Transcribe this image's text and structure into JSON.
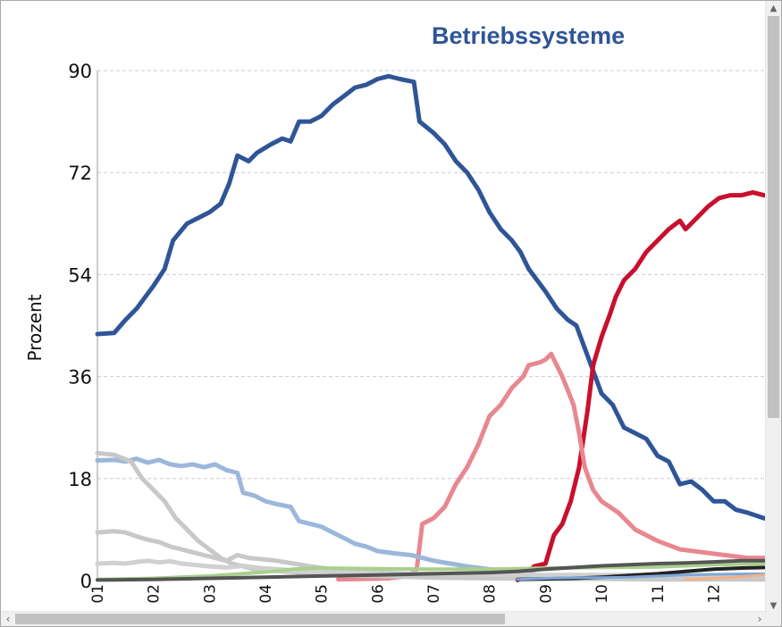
{
  "chart_data": {
    "type": "line",
    "title": "Betriebssysteme",
    "ylabel": "Prozent",
    "xlabel": "",
    "ylim": [
      0,
      90
    ],
    "xlim": [
      2001.0,
      2012.95
    ],
    "yticks": [
      0,
      18,
      36,
      54,
      72,
      90
    ],
    "xticks": [
      "01",
      "02",
      "03",
      "04",
      "05",
      "06",
      "07",
      "08",
      "09",
      "10",
      "11",
      "12"
    ],
    "grid": "horizontal dashed",
    "series": [
      {
        "color": "#2f5597",
        "width": 5,
        "points": [
          [
            2001.0,
            43.5
          ],
          [
            2001.3,
            43.7
          ],
          [
            2001.5,
            46
          ],
          [
            2001.7,
            48
          ],
          [
            2001.85,
            50
          ],
          [
            2002.0,
            52
          ],
          [
            2002.2,
            55
          ],
          [
            2002.35,
            60
          ],
          [
            2002.6,
            63
          ],
          [
            2002.8,
            64
          ],
          [
            2003.0,
            65
          ],
          [
            2003.2,
            66.5
          ],
          [
            2003.35,
            70
          ],
          [
            2003.5,
            75
          ],
          [
            2003.7,
            74
          ],
          [
            2003.85,
            75.5
          ],
          [
            2004.1,
            77
          ],
          [
            2004.3,
            78
          ],
          [
            2004.45,
            77.5
          ],
          [
            2004.6,
            81
          ],
          [
            2004.8,
            81
          ],
          [
            2005.0,
            82
          ],
          [
            2005.2,
            84
          ],
          [
            2005.4,
            85.5
          ],
          [
            2005.6,
            87
          ],
          [
            2005.8,
            87.5
          ],
          [
            2006.0,
            88.5
          ],
          [
            2006.2,
            89
          ],
          [
            2006.4,
            88.5
          ],
          [
            2006.65,
            88
          ],
          [
            2006.75,
            81
          ],
          [
            2007.0,
            79
          ],
          [
            2007.2,
            77
          ],
          [
            2007.4,
            74
          ],
          [
            2007.6,
            72
          ],
          [
            2007.8,
            69
          ],
          [
            2008.0,
            65
          ],
          [
            2008.2,
            62
          ],
          [
            2008.4,
            60
          ],
          [
            2008.55,
            58
          ],
          [
            2008.7,
            55
          ],
          [
            2008.85,
            53
          ],
          [
            2009.0,
            51
          ],
          [
            2009.2,
            48
          ],
          [
            2009.4,
            46
          ],
          [
            2009.55,
            45
          ],
          [
            2009.7,
            41
          ],
          [
            2009.85,
            37
          ],
          [
            2010.0,
            33
          ],
          [
            2010.2,
            31
          ],
          [
            2010.4,
            27
          ],
          [
            2010.6,
            26
          ],
          [
            2010.8,
            25
          ],
          [
            2011.0,
            22
          ],
          [
            2011.2,
            21
          ],
          [
            2011.4,
            17
          ],
          [
            2011.6,
            17.5
          ],
          [
            2011.8,
            16
          ],
          [
            2012.0,
            14
          ],
          [
            2012.2,
            14
          ],
          [
            2012.4,
            12.5
          ],
          [
            2012.6,
            12
          ],
          [
            2012.9,
            11
          ]
        ]
      },
      {
        "color": "#c8102e",
        "width": 5,
        "points": [
          [
            2008.5,
            0.1
          ],
          [
            2008.8,
            2.5
          ],
          [
            2009.0,
            3
          ],
          [
            2009.15,
            8
          ],
          [
            2009.3,
            10
          ],
          [
            2009.45,
            14
          ],
          [
            2009.6,
            20
          ],
          [
            2009.75,
            30
          ],
          [
            2009.85,
            38
          ],
          [
            2010.0,
            43
          ],
          [
            2010.15,
            47
          ],
          [
            2010.25,
            50
          ],
          [
            2010.4,
            53
          ],
          [
            2010.6,
            55
          ],
          [
            2010.8,
            58
          ],
          [
            2011.0,
            60
          ],
          [
            2011.2,
            62
          ],
          [
            2011.4,
            63.5
          ],
          [
            2011.5,
            62
          ],
          [
            2011.7,
            64
          ],
          [
            2011.9,
            66
          ],
          [
            2012.1,
            67.5
          ],
          [
            2012.3,
            68
          ],
          [
            2012.5,
            68
          ],
          [
            2012.7,
            68.5
          ],
          [
            2012.9,
            68
          ]
        ]
      },
      {
        "color": "#e8878f",
        "width": 5,
        "points": [
          [
            2005.3,
            0.2
          ],
          [
            2005.8,
            0.3
          ],
          [
            2006.2,
            0.4
          ],
          [
            2006.55,
            0.8
          ],
          [
            2006.7,
            2
          ],
          [
            2006.8,
            10
          ],
          [
            2007.0,
            11
          ],
          [
            2007.2,
            13
          ],
          [
            2007.4,
            17
          ],
          [
            2007.6,
            20
          ],
          [
            2007.8,
            24
          ],
          [
            2008.0,
            29
          ],
          [
            2008.2,
            31
          ],
          [
            2008.4,
            34
          ],
          [
            2008.6,
            36
          ],
          [
            2008.7,
            38
          ],
          [
            2008.9,
            38.5
          ],
          [
            2009.0,
            39
          ],
          [
            2009.1,
            40
          ],
          [
            2009.3,
            36
          ],
          [
            2009.5,
            31
          ],
          [
            2009.6,
            26
          ],
          [
            2009.7,
            20
          ],
          [
            2009.85,
            16
          ],
          [
            2010.0,
            14
          ],
          [
            2010.3,
            12
          ],
          [
            2010.6,
            9
          ],
          [
            2011.0,
            7
          ],
          [
            2011.4,
            5.5
          ],
          [
            2011.8,
            5
          ],
          [
            2012.2,
            4.5
          ],
          [
            2012.6,
            4
          ],
          [
            2012.9,
            4
          ]
        ]
      },
      {
        "color": "#9bb7db",
        "width": 5,
        "points": [
          [
            2001.0,
            21.2
          ],
          [
            2001.3,
            21.3
          ],
          [
            2001.5,
            21
          ],
          [
            2001.7,
            21.5
          ],
          [
            2001.9,
            20.8
          ],
          [
            2002.1,
            21.3
          ],
          [
            2002.3,
            20.5
          ],
          [
            2002.5,
            20.2
          ],
          [
            2002.7,
            20.5
          ],
          [
            2002.9,
            20
          ],
          [
            2003.1,
            20.5
          ],
          [
            2003.3,
            19.5
          ],
          [
            2003.5,
            19
          ],
          [
            2003.6,
            15.5
          ],
          [
            2003.8,
            15
          ],
          [
            2004.0,
            14
          ],
          [
            2004.2,
            13.5
          ],
          [
            2004.45,
            13
          ],
          [
            2004.6,
            10.5
          ],
          [
            2004.8,
            10
          ],
          [
            2005.0,
            9.5
          ],
          [
            2005.2,
            8.5
          ],
          [
            2005.4,
            7.5
          ],
          [
            2005.6,
            6.5
          ],
          [
            2005.8,
            6
          ],
          [
            2006.0,
            5.2
          ],
          [
            2006.3,
            4.8
          ],
          [
            2006.6,
            4.5
          ],
          [
            2006.8,
            4
          ],
          [
            2007.0,
            3.5
          ],
          [
            2007.3,
            3
          ],
          [
            2007.6,
            2.5
          ],
          [
            2008.0,
            2
          ],
          [
            2008.5,
            1.5
          ],
          [
            2009.0,
            0.8
          ],
          [
            2009.5,
            0.3
          ]
        ]
      },
      {
        "color": "#c8c8c8",
        "width": 5,
        "points": [
          [
            2001.0,
            22.5
          ],
          [
            2001.3,
            22.2
          ],
          [
            2001.6,
            21
          ],
          [
            2001.8,
            18
          ],
          [
            2002.0,
            16
          ],
          [
            2002.2,
            14
          ],
          [
            2002.4,
            11
          ],
          [
            2002.6,
            9
          ],
          [
            2002.8,
            7
          ],
          [
            2003.0,
            5.5
          ],
          [
            2003.2,
            4
          ],
          [
            2003.4,
            3
          ],
          [
            2003.6,
            2.5
          ],
          [
            2003.8,
            2
          ],
          [
            2004.0,
            1.8
          ],
          [
            2004.5,
            1.5
          ],
          [
            2005.0,
            1
          ],
          [
            2006.0,
            0.8
          ],
          [
            2007.0,
            0.5
          ],
          [
            2008.0,
            0.4
          ],
          [
            2009.0,
            0.3
          ],
          [
            2010.0,
            0.3
          ],
          [
            2011.0,
            0.2
          ],
          [
            2012.0,
            0.2
          ],
          [
            2012.9,
            0.2
          ]
        ]
      },
      {
        "color": "#c8c8c8",
        "width": 5,
        "points": [
          [
            2001.0,
            8.5
          ],
          [
            2001.3,
            8.7
          ],
          [
            2001.5,
            8.5
          ],
          [
            2001.7,
            7.8
          ],
          [
            2001.9,
            7.2
          ],
          [
            2002.1,
            6.8
          ],
          [
            2002.3,
            6
          ],
          [
            2002.5,
            5.5
          ],
          [
            2002.7,
            5
          ],
          [
            2002.9,
            4.5
          ],
          [
            2003.1,
            4
          ],
          [
            2003.3,
            3.5
          ],
          [
            2003.5,
            4.5
          ],
          [
            2003.7,
            4
          ],
          [
            2003.9,
            3.8
          ],
          [
            2004.2,
            3.5
          ],
          [
            2004.5,
            3
          ],
          [
            2004.8,
            2.5
          ],
          [
            2005.2,
            2
          ],
          [
            2005.6,
            1.8
          ],
          [
            2006.0,
            1.5
          ],
          [
            2007.0,
            1
          ],
          [
            2008.0,
            0.8
          ],
          [
            2009.0,
            0.6
          ],
          [
            2010.0,
            0.5
          ],
          [
            2011.0,
            0.4
          ],
          [
            2012.0,
            0.3
          ],
          [
            2012.9,
            0.3
          ]
        ]
      },
      {
        "color": "#d0d0d0",
        "width": 5,
        "points": [
          [
            2001.0,
            3
          ],
          [
            2001.3,
            3.1
          ],
          [
            2001.5,
            3
          ],
          [
            2001.7,
            3.3
          ],
          [
            2001.9,
            3.5
          ],
          [
            2002.1,
            3.2
          ],
          [
            2002.3,
            3.4
          ],
          [
            2002.5,
            3
          ],
          [
            2002.7,
            2.8
          ],
          [
            2003.0,
            2.5
          ],
          [
            2003.3,
            2.3
          ],
          [
            2003.6,
            2.6
          ],
          [
            2003.9,
            2.2
          ],
          [
            2004.2,
            2
          ],
          [
            2004.5,
            1.8
          ],
          [
            2005.0,
            1.5
          ],
          [
            2005.5,
            1.3
          ],
          [
            2006.0,
            1.2
          ],
          [
            2007.0,
            1.2
          ],
          [
            2008.0,
            1.1
          ],
          [
            2009.0,
            1
          ],
          [
            2010.0,
            1
          ],
          [
            2011.0,
            1
          ],
          [
            2012.0,
            0.9
          ],
          [
            2012.9,
            0.9
          ]
        ]
      },
      {
        "color": "#a8d08d",
        "width": 4,
        "points": [
          [
            2001.0,
            0.2
          ],
          [
            2002.0,
            0.4
          ],
          [
            2003.0,
            0.8
          ],
          [
            2004.0,
            1.5
          ],
          [
            2004.5,
            2
          ],
          [
            2005.0,
            2.2
          ],
          [
            2006.0,
            2.1
          ],
          [
            2007.0,
            2
          ],
          [
            2008.0,
            2
          ],
          [
            2008.5,
            2.1
          ],
          [
            2009.0,
            2.2
          ],
          [
            2010.0,
            2.3
          ],
          [
            2011.0,
            2.4
          ],
          [
            2012.0,
            2.8
          ],
          [
            2012.9,
            3
          ]
        ]
      },
      {
        "color": "#555555",
        "width": 4,
        "points": [
          [
            2001.0,
            0.1
          ],
          [
            2002.0,
            0.2
          ],
          [
            2003.0,
            0.4
          ],
          [
            2004.0,
            0.6
          ],
          [
            2005.0,
            0.8
          ],
          [
            2006.0,
            1
          ],
          [
            2007.0,
            1.2
          ],
          [
            2008.0,
            1.4
          ],
          [
            2008.5,
            1.6
          ],
          [
            2009.0,
            2
          ],
          [
            2009.5,
            2.3
          ],
          [
            2010.0,
            2.6
          ],
          [
            2010.5,
            2.8
          ],
          [
            2011.0,
            3
          ],
          [
            2011.5,
            3.1
          ],
          [
            2012.0,
            3.3
          ],
          [
            2012.5,
            3.5
          ],
          [
            2012.9,
            3.5
          ]
        ]
      },
      {
        "color": "#222222",
        "width": 4,
        "points": [
          [
            2008.5,
            0.2
          ],
          [
            2009.0,
            0.3
          ],
          [
            2009.5,
            0.4
          ],
          [
            2010.0,
            0.6
          ],
          [
            2010.5,
            0.9
          ],
          [
            2011.0,
            1.2
          ],
          [
            2011.5,
            1.6
          ],
          [
            2012.0,
            2
          ],
          [
            2012.5,
            2.2
          ],
          [
            2012.9,
            2.3
          ]
        ]
      },
      {
        "color": "#7da7d9",
        "width": 3,
        "points": [
          [
            2008.5,
            0.2
          ],
          [
            2009.0,
            0.4
          ],
          [
            2009.5,
            0.5
          ],
          [
            2010.0,
            0.5
          ],
          [
            2010.5,
            0.6
          ],
          [
            2011.0,
            0.8
          ],
          [
            2011.5,
            1
          ],
          [
            2012.0,
            1.1
          ],
          [
            2012.9,
            1.2
          ]
        ]
      },
      {
        "color": "#f4b183",
        "width": 3,
        "points": [
          [
            2011.5,
            0.2
          ],
          [
            2012.0,
            0.4
          ],
          [
            2012.5,
            0.7
          ],
          [
            2012.9,
            1
          ]
        ]
      }
    ]
  },
  "colors": {
    "title": "#2f5597",
    "grid": "#cccccc",
    "axis": "#999999"
  }
}
